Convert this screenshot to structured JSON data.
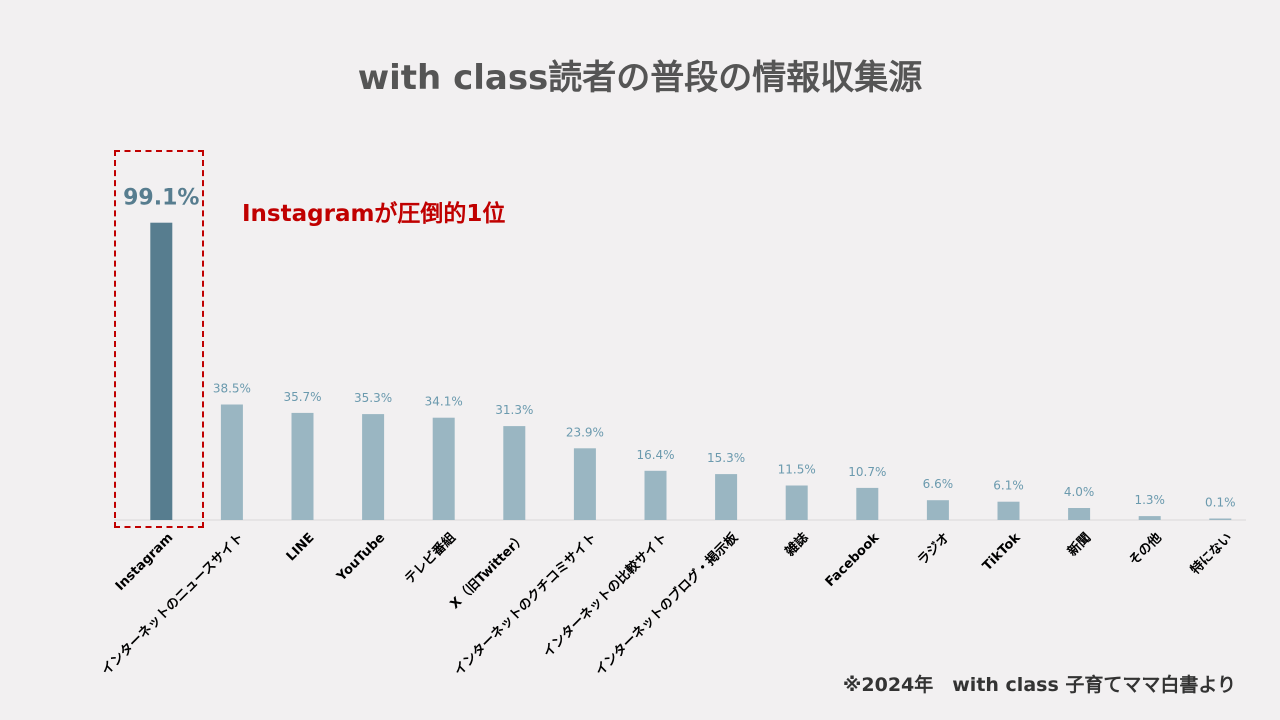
{
  "title": "with class読者の普段の情報収集源",
  "callout": "Instagramが圧倒的1位",
  "footnote": "※2024年　with class 子育てママ白書より",
  "colors": {
    "background": "#f2f0f1",
    "highlight_bar": "#577d8f",
    "bar": "#9ab6c2",
    "highlight_label": "#577d8f",
    "label": "#6b9aae",
    "callout": "#c00000",
    "axis": "#d9d9d9"
  },
  "chart_data": {
    "type": "bar",
    "categories": [
      "Instagram",
      "インターネットのニュースサイト",
      "LINE",
      "YouTube",
      "テレビ番組",
      "X（旧Twitter）",
      "インターネットのクチコミサイト",
      "インターネットの比較サイト",
      "インターネットのブログ・掲示板",
      "雑誌",
      "Facebook",
      "ラジオ",
      "TikTok",
      "新聞",
      "その他",
      "特にない"
    ],
    "values": [
      99.1,
      38.5,
      35.7,
      35.3,
      34.1,
      31.3,
      23.9,
      16.4,
      15.3,
      11.5,
      10.7,
      6.6,
      6.1,
      4.0,
      1.3,
      0.1
    ],
    "data_labels": [
      "99.1%",
      "38.5%",
      "35.7%",
      "35.3%",
      "34.1%",
      "31.3%",
      "23.9%",
      "16.4%",
      "15.3%",
      "11.5%",
      "10.7%",
      "6.6%",
      "6.1%",
      "4.0%",
      "1.3%",
      "0.1%"
    ],
    "highlight_index": 0,
    "ylim": [
      0,
      100
    ],
    "grid": false,
    "legend": "none"
  }
}
